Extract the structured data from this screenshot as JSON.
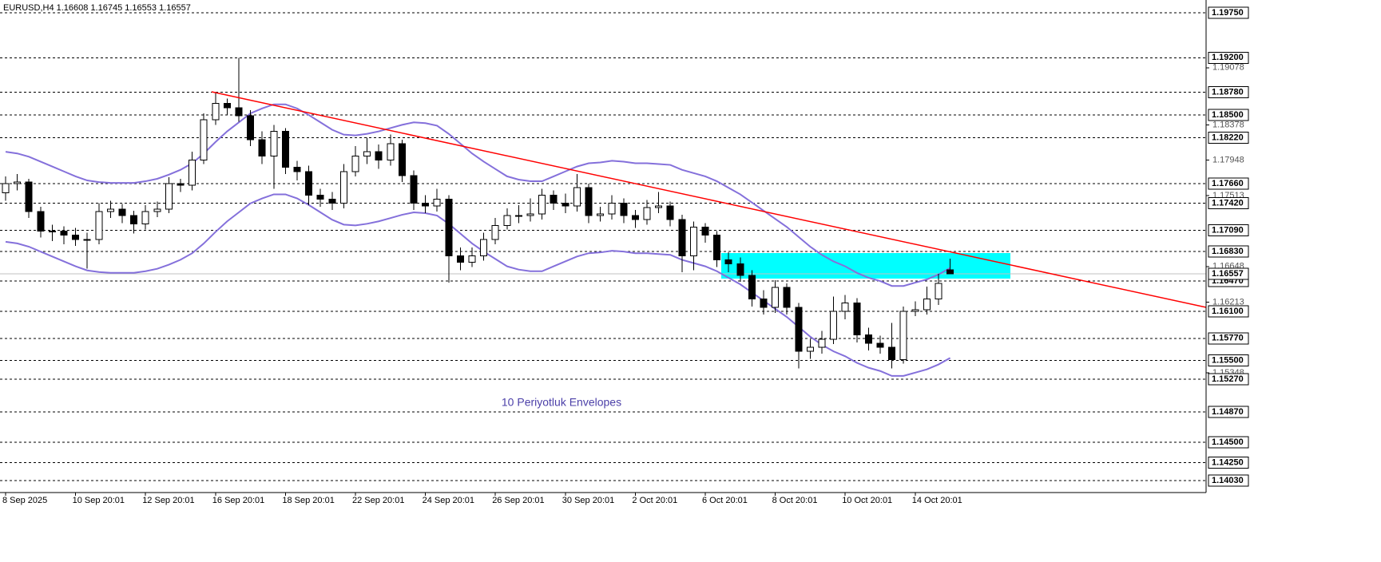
{
  "chart_data": {
    "type": "candlestick",
    "header": "EURUSD,H4  1.16608 1.16745 1.16553 1.16557",
    "annotation": "10 Periyotluk Envelopes",
    "categories": [
      "8 Sep 2025",
      null,
      null,
      null,
      null,
      null,
      "10 Sep 20:01",
      null,
      null,
      null,
      null,
      null,
      "12 Sep 20:01",
      null,
      null,
      null,
      null,
      null,
      "16 Sep 20:01",
      null,
      null,
      null,
      null,
      null,
      "18 Sep 20:01",
      null,
      null,
      null,
      null,
      null,
      "22 Sep 20:01",
      null,
      null,
      null,
      null,
      null,
      "24 Sep 20:01",
      null,
      null,
      null,
      null,
      null,
      "26 Sep 20:01",
      null,
      null,
      null,
      null,
      null,
      "30 Sep 20:01",
      null,
      null,
      null,
      null,
      null,
      "2 Oct 20:01",
      null,
      null,
      null,
      null,
      null,
      "6 Oct 20:01",
      null,
      null,
      null,
      null,
      null,
      "8 Oct 20:01",
      null,
      null,
      null,
      null,
      null,
      "10 Oct 20:01",
      null,
      null,
      null,
      null,
      null,
      "14 Oct 20:01",
      null,
      null,
      null
    ],
    "open": [
      1.1755,
      1.1766,
      1.1768,
      1.1732,
      1.1708,
      1.1708,
      1.1703,
      1.1698,
      1.1698,
      1.1732,
      1.1735,
      1.1727,
      1.1717,
      1.1732,
      1.1735,
      1.1766,
      1.1764,
      1.1795,
      1.1844,
      1.1864,
      1.1859,
      1.1849,
      1.182,
      1.18,
      1.183,
      1.1786,
      1.1781,
      1.1752,
      1.1747,
      1.1742,
      1.1781,
      1.18,
      1.1805,
      1.1795,
      1.1815,
      1.1776,
      1.1742,
      1.1739,
      1.1747,
      1.1678,
      1.167,
      1.1678,
      1.1698,
      1.1715,
      1.1727,
      1.1727,
      1.1729,
      1.1752,
      1.1742,
      1.1739,
      1.1761,
      1.1727,
      1.1729,
      1.1742,
      1.1727,
      1.1722,
      1.1737,
      1.1739,
      1.1722,
      1.1678,
      1.1713,
      1.1703,
      1.1673,
      1.1668,
      1.1654,
      1.1625,
      1.1615,
      1.1639,
      1.1615,
      1.1561,
      1.1566,
      1.1576,
      1.161,
      1.162,
      1.1581,
      1.1571,
      1.1566,
      1.1551,
      1.161,
      1.1612,
      1.1625,
      1.16608
    ],
    "high": [
      1.1775,
      1.1778,
      1.1772,
      1.1738,
      1.1716,
      1.1714,
      1.1712,
      1.1706,
      1.1742,
      1.1745,
      1.1741,
      1.1733,
      1.174,
      1.1744,
      1.1774,
      1.1772,
      1.1805,
      1.1852,
      1.1878,
      1.187,
      1.192,
      1.1856,
      1.183,
      1.1838,
      1.1834,
      1.1794,
      1.1788,
      1.176,
      1.1756,
      1.179,
      1.1812,
      1.1822,
      1.1814,
      1.1826,
      1.182,
      1.1782,
      1.1752,
      1.176,
      1.1752,
      1.1688,
      1.1688,
      1.1706,
      1.1724,
      1.1736,
      1.174,
      1.1748,
      1.176,
      1.1758,
      1.1754,
      1.1778,
      1.1766,
      1.1738,
      1.1752,
      1.1748,
      1.1734,
      1.1746,
      1.1756,
      1.1744,
      1.1728,
      1.172,
      1.1718,
      1.1708,
      1.1682,
      1.1676,
      1.166,
      1.1636,
      1.1648,
      1.1644,
      1.162,
      1.1576,
      1.1586,
      1.1628,
      1.163,
      1.1626,
      1.159,
      1.158,
      1.1596,
      1.1616,
      1.1622,
      1.164,
      1.1656,
      1.16745
    ],
    "low": [
      1.1745,
      1.1758,
      1.1724,
      1.17,
      1.1696,
      1.1692,
      1.169,
      1.1662,
      1.1692,
      1.1724,
      1.1718,
      1.1705,
      1.171,
      1.1725,
      1.173,
      1.1756,
      1.1758,
      1.179,
      1.1838,
      1.185,
      1.1842,
      1.1812,
      1.179,
      1.176,
      1.1778,
      1.177,
      1.174,
      1.1738,
      1.1734,
      1.1736,
      1.1775,
      1.179,
      1.1784,
      1.1788,
      1.1768,
      1.1734,
      1.173,
      1.1732,
      1.1645,
      1.166,
      1.1664,
      1.1672,
      1.1692,
      1.171,
      1.1718,
      1.172,
      1.1722,
      1.1734,
      1.173,
      1.1732,
      1.1718,
      1.172,
      1.1722,
      1.1718,
      1.1712,
      1.1716,
      1.173,
      1.1714,
      1.1658,
      1.166,
      1.1694,
      1.1664,
      1.1658,
      1.1646,
      1.1616,
      1.1606,
      1.1608,
      1.1606,
      1.154,
      1.1552,
      1.1558,
      1.157,
      1.16,
      1.1572,
      1.1562,
      1.1558,
      1.154,
      1.1546,
      1.1604,
      1.1606,
      1.1618,
      1.16553
    ],
    "close": [
      1.1766,
      1.1768,
      1.1732,
      1.1708,
      1.1708,
      1.1703,
      1.1698,
      1.1698,
      1.1732,
      1.1735,
      1.1727,
      1.1717,
      1.1732,
      1.1735,
      1.1766,
      1.1764,
      1.1795,
      1.1844,
      1.1864,
      1.1859,
      1.1849,
      1.182,
      1.18,
      1.183,
      1.1786,
      1.1781,
      1.1752,
      1.1747,
      1.1742,
      1.1781,
      1.18,
      1.1805,
      1.1795,
      1.1815,
      1.1776,
      1.1742,
      1.1739,
      1.1747,
      1.1678,
      1.167,
      1.1678,
      1.1698,
      1.1715,
      1.1727,
      1.1727,
      1.1729,
      1.1752,
      1.1742,
      1.1739,
      1.1761,
      1.1727,
      1.1729,
      1.1742,
      1.1727,
      1.1722,
      1.1737,
      1.1739,
      1.1722,
      1.1678,
      1.1713,
      1.1703,
      1.1673,
      1.1668,
      1.1654,
      1.1625,
      1.1615,
      1.1639,
      1.1615,
      1.1561,
      1.1566,
      1.1576,
      1.161,
      1.162,
      1.1581,
      1.1571,
      1.1566,
      1.1551,
      1.161,
      1.1612,
      1.1625,
      1.1644,
      1.16557
    ],
    "up_color": "#ffffff",
    "down_color": "#000000",
    "envelopes": {
      "color": "#8470db",
      "upper": [
        1.1805,
        1.1803,
        1.1799,
        1.1793,
        1.1787,
        1.1781,
        1.1775,
        1.177,
        1.1768,
        1.1767,
        1.1767,
        1.1767,
        1.1769,
        1.1772,
        1.1777,
        1.1783,
        1.1791,
        1.1803,
        1.1817,
        1.183,
        1.1841,
        1.1852,
        1.1858,
        1.1863,
        1.1863,
        1.1858,
        1.185,
        1.1841,
        1.1832,
        1.1826,
        1.1825,
        1.1827,
        1.183,
        1.1834,
        1.1838,
        1.1841,
        1.184,
        1.1837,
        1.1827,
        1.1815,
        1.1803,
        1.1793,
        1.1784,
        1.1775,
        1.1771,
        1.1769,
        1.1769,
        1.1775,
        1.1781,
        1.1787,
        1.1791,
        1.1792,
        1.1794,
        1.1793,
        1.1791,
        1.1791,
        1.179,
        1.1789,
        1.1783,
        1.1779,
        1.1775,
        1.1769,
        1.1761,
        1.1753,
        1.1743,
        1.1733,
        1.1723,
        1.1713,
        1.1701,
        1.1689,
        1.1679,
        1.1671,
        1.1665,
        1.1657,
        1.1651,
        1.1647,
        1.1641,
        1.1641,
        1.1645,
        1.1649,
        1.1655,
        1.1663
      ],
      "lower": [
        1.1695,
        1.1693,
        1.1689,
        1.1683,
        1.1677,
        1.1671,
        1.1665,
        1.166,
        1.1658,
        1.1657,
        1.1657,
        1.1657,
        1.1659,
        1.1662,
        1.1667,
        1.1673,
        1.1681,
        1.1693,
        1.1707,
        1.172,
        1.1731,
        1.1742,
        1.1748,
        1.1753,
        1.1753,
        1.1748,
        1.174,
        1.1731,
        1.1722,
        1.1716,
        1.1715,
        1.1717,
        1.172,
        1.1724,
        1.1728,
        1.1731,
        1.173,
        1.1727,
        1.1717,
        1.1705,
        1.1693,
        1.1683,
        1.1674,
        1.1665,
        1.1661,
        1.1659,
        1.1659,
        1.1665,
        1.1671,
        1.1677,
        1.1681,
        1.1682,
        1.1684,
        1.1683,
        1.1681,
        1.1681,
        1.168,
        1.1679,
        1.1673,
        1.1669,
        1.1665,
        1.1659,
        1.1651,
        1.1643,
        1.1633,
        1.1623,
        1.1613,
        1.1603,
        1.1591,
        1.1579,
        1.1569,
        1.1561,
        1.1555,
        1.1547,
        1.1541,
        1.1537,
        1.1531,
        1.1531,
        1.1535,
        1.1539,
        1.1545,
        1.1553
      ]
    },
    "ylim": [
      1.13884,
      1.19906
    ],
    "yticks": [
      {
        "value": 1.19078,
        "label": "1.19078"
      },
      {
        "value": 1.18378,
        "label": "1.18378"
      },
      {
        "value": 1.17948,
        "label": "1.17948"
      },
      {
        "value": 1.17513,
        "label": "1.17513"
      },
      {
        "value": 1.16648,
        "label": "1.16648"
      },
      {
        "value": 1.16213,
        "label": "1.16213"
      },
      {
        "value": 1.15348,
        "label": "1.15348"
      }
    ],
    "levels": [
      {
        "value": 1.1975,
        "label": "1.19750"
      },
      {
        "value": 1.192,
        "label": "1.19200"
      },
      {
        "value": 1.1878,
        "label": "1.18780"
      },
      {
        "value": 1.185,
        "label": "1.18500"
      },
      {
        "value": 1.1822,
        "label": "1.18220"
      },
      {
        "value": 1.1766,
        "label": "1.17660"
      },
      {
        "value": 1.1742,
        "label": "1.17420"
      },
      {
        "value": 1.1709,
        "label": "1.17090"
      },
      {
        "value": 1.1683,
        "label": "1.16830"
      },
      {
        "value": 1.1647,
        "label": "1.16470"
      },
      {
        "value": 1.161,
        "label": "1.16100"
      },
      {
        "value": 1.1577,
        "label": "1.15770"
      },
      {
        "value": 1.155,
        "label": "1.15500"
      },
      {
        "value": 1.1527,
        "label": "1.15270"
      },
      {
        "value": 1.1487,
        "label": "1.14870"
      },
      {
        "value": 1.145,
        "label": "1.14500"
      },
      {
        "value": 1.1425,
        "label": "1.14250"
      },
      {
        "value": 1.1403,
        "label": "1.14030"
      }
    ],
    "bid": {
      "value": 1.16557,
      "label": "1.16557"
    }
  }
}
